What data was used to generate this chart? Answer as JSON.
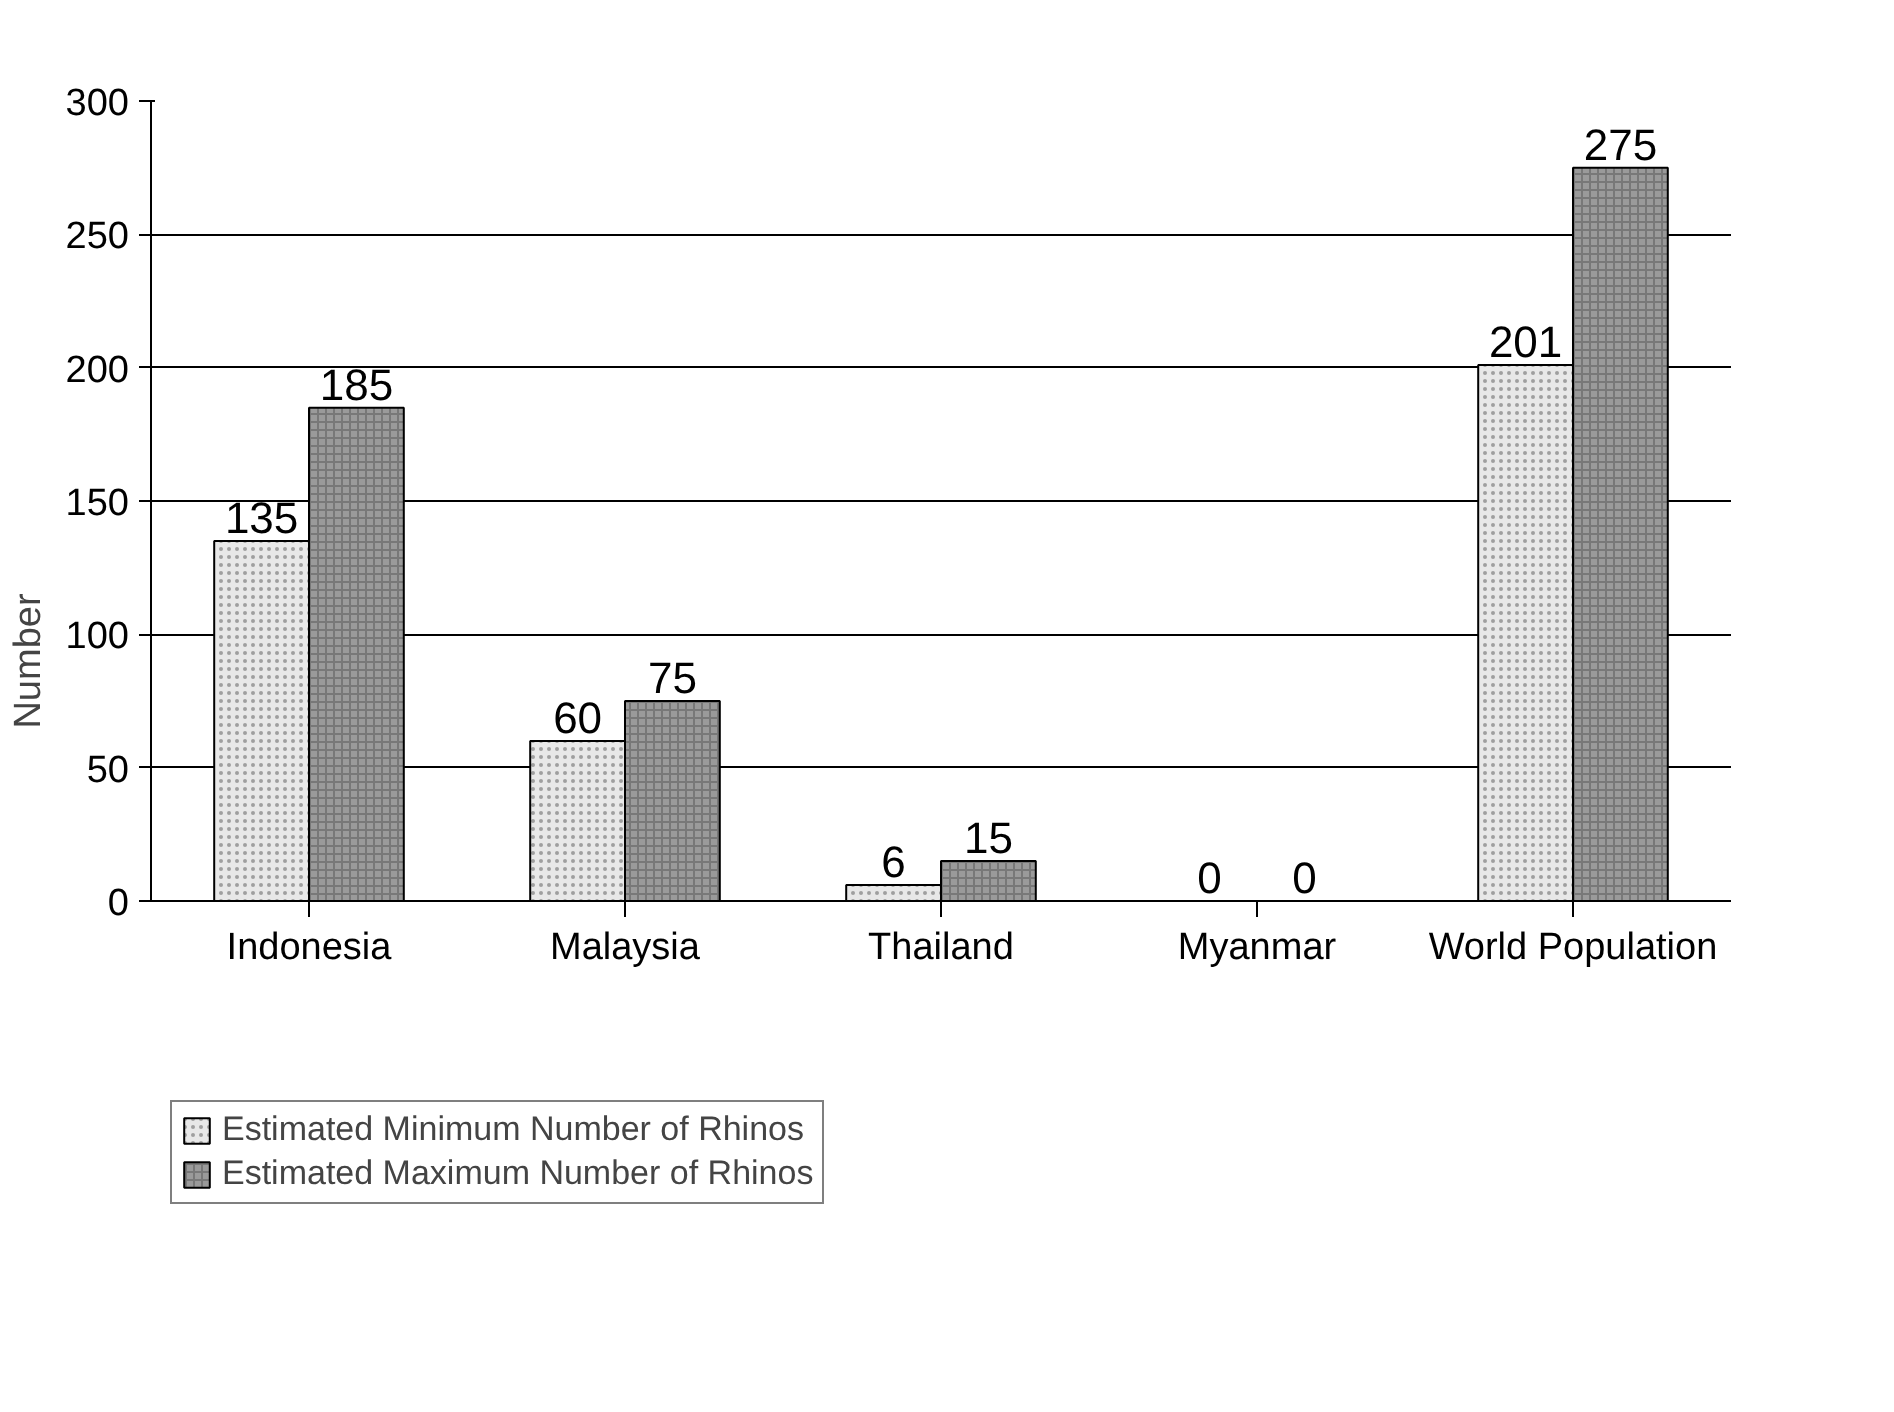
{
  "chart_data": {
    "type": "bar",
    "ylabel": "Number",
    "categories": [
      "Indonesia",
      "Malaysia",
      "Thailand",
      "Myanmar",
      "World Population"
    ],
    "series": [
      {
        "name": "Estimated Minimum Number of Rhinos",
        "color": "#e8e8e8",
        "values": [
          135,
          60,
          6,
          0,
          201
        ]
      },
      {
        "name": "Estimated Maximum Number of Rhinos",
        "color": "#9a9a9a",
        "values": [
          185,
          75,
          15,
          0,
          275
        ]
      }
    ],
    "ylim": [
      0,
      300
    ],
    "yticks": [
      0,
      50,
      100,
      150,
      200,
      250,
      300
    ],
    "grid": "y",
    "legend": "bottom left",
    "data_labels": true
  }
}
